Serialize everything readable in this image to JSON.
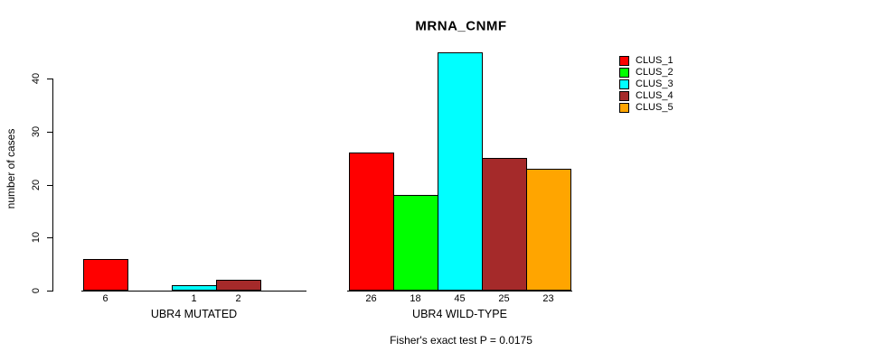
{
  "chart_data": {
    "type": "bar",
    "title": "MRNA_CNMF",
    "ylabel": "number of cases",
    "ylim": [
      0,
      45
    ],
    "yticks": [
      0,
      10,
      20,
      30,
      40
    ],
    "grid": false,
    "legend_position": "right",
    "series": [
      {
        "name": "CLUS_1",
        "color": "#FF0000"
      },
      {
        "name": "CLUS_2",
        "color": "#00FF00"
      },
      {
        "name": "CLUS_3",
        "color": "#00FFFF"
      },
      {
        "name": "CLUS_4",
        "color": "#A52A2A"
      },
      {
        "name": "CLUS_5",
        "color": "#FFA500"
      }
    ],
    "groups": [
      {
        "label": "UBR4 MUTATED",
        "values": [
          6,
          0,
          1,
          2,
          0
        ],
        "bar_labels": [
          "6",
          "",
          "1",
          "2",
          ""
        ]
      },
      {
        "label": "UBR4 WILD-TYPE",
        "values": [
          26,
          18,
          45,
          25,
          23
        ],
        "bar_labels": [
          "26",
          "18",
          "45",
          "25",
          "23"
        ]
      }
    ],
    "annotation": "Fisher's exact test P = 0.0175"
  },
  "colors": {
    "background": "#FFFFFF",
    "axis": "#000000",
    "text": "#000000"
  }
}
